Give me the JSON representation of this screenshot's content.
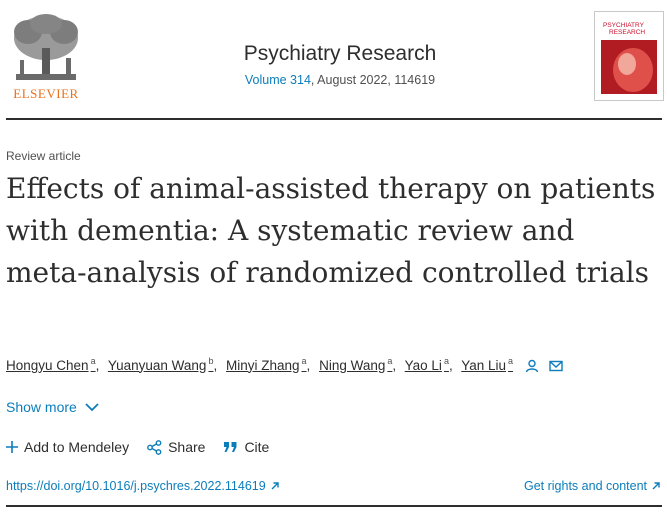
{
  "header": {
    "publisher_logo_text": "ELSEVIER",
    "journal_title": "Psychiatry Research",
    "volume_link": "Volume 314",
    "issue_info": ", August 2022, 114619",
    "cover_title_line1": "PSYCHIATRY",
    "cover_title_line2": "RESEARCH"
  },
  "article": {
    "type": "Review article",
    "title": "Effects of animal-assisted therapy on patients with dementia: A systematic review and meta-analysis of randomized controlled trials",
    "authors": [
      {
        "name": "Hongyu Chen",
        "affil": "a"
      },
      {
        "name": "Yuanyuan Wang",
        "affil": "b"
      },
      {
        "name": "Minyi Zhang",
        "affil": "a"
      },
      {
        "name": "Ning Wang",
        "affil": "a"
      },
      {
        "name": "Yao Li",
        "affil": "a"
      },
      {
        "name": "Yan Liu",
        "affil": "a"
      }
    ],
    "show_more": "Show more"
  },
  "actions": {
    "mendeley": "Add to Mendeley",
    "share": "Share",
    "cite": "Cite"
  },
  "links": {
    "doi": "https://doi.org/10.1016/j.psychres.2022.114619",
    "rights": "Get rights and content"
  },
  "colors": {
    "link": "#0c7dbb",
    "elsevier_orange": "#e9711c",
    "text": "#2e2e2e"
  }
}
